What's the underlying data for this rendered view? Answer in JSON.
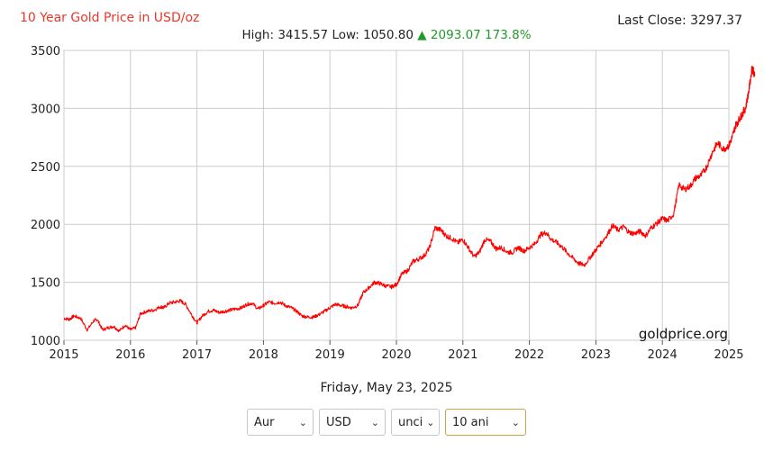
{
  "header": {
    "title": "10 Year Gold Price in USD/oz",
    "last_close": "Last Close: 3297.37",
    "stats_text": "High: 3415.57 Low: 1050.80",
    "change_text": "▲ 2093.07 173.8%"
  },
  "date_text": "Friday, May 23, 2025",
  "watermark": "goldprice.org",
  "controls": {
    "metal": "Aur",
    "currency": "USD",
    "unit": "unci",
    "range": "10 ani"
  },
  "colors": {
    "line": "#ff0000",
    "title": "#e8382a",
    "up": "#1f9a2a",
    "grid": "#cccccc"
  },
  "chart_data": {
    "type": "line",
    "title": "10 Year Gold Price in USD/oz",
    "xlabel": "",
    "ylabel": "",
    "xlim": [
      2015,
      2025
    ],
    "ylim": [
      1000,
      3500
    ],
    "xticks": [
      "2015",
      "2016",
      "2017",
      "2018",
      "2019",
      "2020",
      "2021",
      "2022",
      "2023",
      "2024",
      "2025"
    ],
    "yticks": [
      "1000",
      "1500",
      "2000",
      "2500",
      "3000",
      "3500"
    ],
    "grid": true,
    "series": [
      {
        "x": [
          2015.0,
          2015.08,
          2015.15,
          2015.25,
          2015.35,
          2015.45,
          2015.5,
          2015.58,
          2015.67,
          2015.75,
          2015.83,
          2015.92,
          2016.0,
          2016.08,
          2016.15,
          2016.25,
          2016.35,
          2016.45,
          2016.5,
          2016.58,
          2016.67,
          2016.75,
          2016.83,
          2016.92,
          2017.0,
          2017.08,
          2017.17,
          2017.25,
          2017.33,
          2017.42,
          2017.5,
          2017.58,
          2017.67,
          2017.75,
          2017.83,
          2017.92,
          2018.0,
          2018.08,
          2018.17,
          2018.25,
          2018.33,
          2018.42,
          2018.5,
          2018.58,
          2018.67,
          2018.75,
          2018.83,
          2018.92,
          2019.0,
          2019.08,
          2019.17,
          2019.25,
          2019.33,
          2019.42,
          2019.5,
          2019.58,
          2019.67,
          2019.75,
          2019.83,
          2019.92,
          2020.0,
          2020.08,
          2020.17,
          2020.25,
          2020.33,
          2020.42,
          2020.5,
          2020.58,
          2020.67,
          2020.75,
          2020.83,
          2020.92,
          2021.0,
          2021.08,
          2021.17,
          2021.25,
          2021.33,
          2021.42,
          2021.5,
          2021.58,
          2021.67,
          2021.75,
          2021.83,
          2021.92,
          2022.0,
          2022.08,
          2022.17,
          2022.25,
          2022.33,
          2022.42,
          2022.5,
          2022.58,
          2022.67,
          2022.75,
          2022.83,
          2022.92,
          2023.0,
          2023.08,
          2023.17,
          2023.25,
          2023.33,
          2023.42,
          2023.5,
          2023.58,
          2023.67,
          2023.75,
          2023.83,
          2023.92,
          2024.0,
          2024.08,
          2024.17,
          2024.25,
          2024.33,
          2024.42,
          2024.5,
          2024.58,
          2024.67,
          2024.75,
          2024.83,
          2024.92,
          2025.0,
          2025.05,
          2025.1,
          2025.15,
          2025.2,
          2025.25,
          2025.3,
          2025.35,
          2025.39
        ],
        "values": [
          1190,
          1180,
          1210,
          1190,
          1090,
          1170,
          1180,
          1090,
          1110,
          1120,
          1080,
          1130,
          1090,
          1110,
          1230,
          1250,
          1260,
          1290,
          1280,
          1320,
          1330,
          1340,
          1310,
          1220,
          1150,
          1210,
          1250,
          1260,
          1240,
          1250,
          1260,
          1270,
          1280,
          1310,
          1320,
          1270,
          1300,
          1330,
          1320,
          1330,
          1300,
          1280,
          1250,
          1210,
          1200,
          1200,
          1220,
          1250,
          1280,
          1310,
          1300,
          1290,
          1280,
          1300,
          1410,
          1450,
          1500,
          1490,
          1470,
          1460,
          1480,
          1570,
          1600,
          1680,
          1700,
          1730,
          1800,
          1970,
          1950,
          1900,
          1880,
          1840,
          1870,
          1800,
          1720,
          1760,
          1870,
          1850,
          1790,
          1800,
          1760,
          1760,
          1800,
          1770,
          1800,
          1830,
          1910,
          1930,
          1870,
          1840,
          1800,
          1750,
          1700,
          1660,
          1650,
          1720,
          1780,
          1840,
          1910,
          1990,
          1950,
          1980,
          1930,
          1920,
          1940,
          1900,
          1970,
          2010,
          2050,
          2030,
          2090,
          2340,
          2300,
          2330,
          2400,
          2420,
          2500,
          2620,
          2700,
          2650,
          2680,
          2750,
          2850,
          2900,
          2950,
          3000,
          3150,
          3350,
          3297
        ]
      }
    ]
  }
}
